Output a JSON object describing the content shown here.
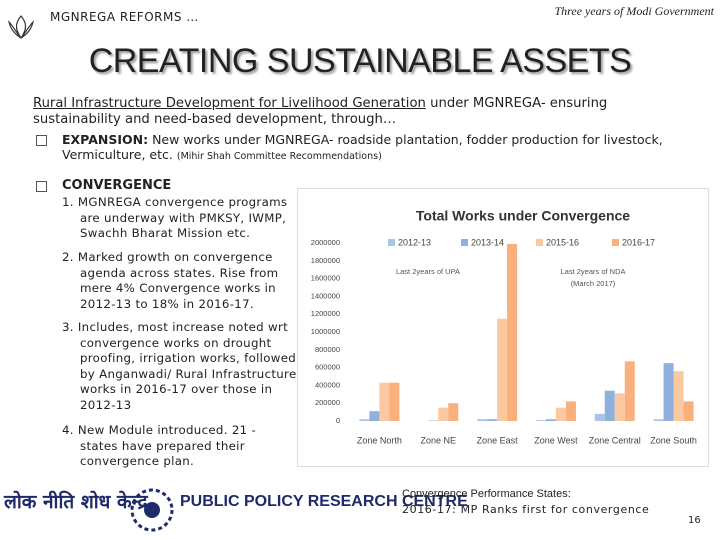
{
  "header": {
    "left": "MGNREGA REFORMS …",
    "right": "Three years of Modi Government"
  },
  "title": "CREATING SUSTAINABLE ASSETS",
  "intro": {
    "underlined": "Rural Infrastructure Development for Livelihood Generation",
    "rest": "under MGNREGA- ensuring sustainability and need-based development, through…"
  },
  "expansion": {
    "head": "EXPANSION:",
    "text": "New works under MGNREGA- roadside plantation, fodder production for livestock, Vermiculture, etc.",
    "note": "(Mihir Shah Committee Recommendations)"
  },
  "convergence": {
    "head": "CONVERGENCE",
    "items": [
      "1. MGNREGA convergence programs are underway with PMKSY, IWMP, Swachh Bharat Mission etc.",
      "2. Marked growth on convergence agenda across states. Rise from mere 4% Convergence works in 2012-13 to 18% in 2016-17.",
      "3. Includes, most increase noted wrt convergence works on drought proofing, irrigation works, followed by Anganwadi/ Rural Infrastructure works in 2016-17 over those in 2012-13",
      "4. New Module introduced. 21 - states have prepared their convergence plan."
    ]
  },
  "chart_data": {
    "type": "bar",
    "title": "Total Works under Convergence",
    "categories": [
      "Zone North",
      "Zone NE",
      "Zone East",
      "Zone West",
      "Zone Central",
      "Zone South"
    ],
    "series": [
      {
        "name": "2012-13",
        "color": "#a9c4e8",
        "values": [
          20000,
          0,
          20000,
          10000,
          80000,
          20000
        ]
      },
      {
        "name": "2013-14",
        "color": "#8eb0dc",
        "values": [
          110000,
          5000,
          20000,
          20000,
          340000,
          650000
        ]
      },
      {
        "name": "2015-16",
        "color": "#fbc9a0",
        "values": [
          430000,
          150000,
          1150000,
          150000,
          310000,
          560000
        ]
      },
      {
        "name": "2016-17",
        "color": "#f8b07c",
        "values": [
          430000,
          200000,
          1990000,
          220000,
          670000,
          220000
        ]
      }
    ],
    "ylim": [
      0,
      2000000
    ],
    "yticks": [
      0,
      200000,
      400000,
      600000,
      800000,
      1000000,
      1200000,
      1400000,
      1600000,
      1800000,
      2000000
    ],
    "annotations": [
      "Last 2years of UPA",
      "Last 2years of NDA",
      "(March 2017)"
    ]
  },
  "footer": {
    "hindi": "लोक नीति शोध केन्द्र",
    "english": "PUBLIC POLICY RESEARCH CENTRE"
  },
  "performance": {
    "title": "Convergence Performance States:",
    "text": "2016-17: MP Ranks first for convergence"
  },
  "page_number": "16"
}
